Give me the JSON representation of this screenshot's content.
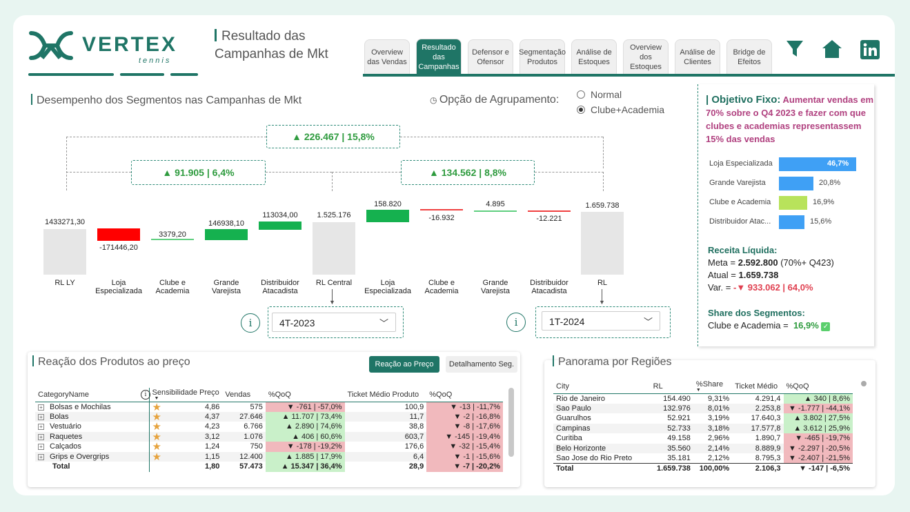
{
  "brand": {
    "name": "VERTEX",
    "sub": "tennis"
  },
  "page_title": "Resultado das Campanhas de Mkt",
  "tabs": [
    {
      "label": "Overview das Vendas",
      "active": false
    },
    {
      "label": "Resultado das Campanhas",
      "active": true
    },
    {
      "label": "Defensor e Ofensor",
      "active": false
    },
    {
      "label": "Segmentação Produtos",
      "active": false
    },
    {
      "label": "Análise de Estoques",
      "active": false
    },
    {
      "label": "Overview dos Estoques",
      "active": false
    },
    {
      "label": "Análise de Clientes",
      "active": false
    },
    {
      "label": "Bridge de Efeitos",
      "active": false
    }
  ],
  "waterfall": {
    "title": "Desempenho dos Segmentos nas Campanhas de Mkt",
    "grouping_label": "Opção de Agrupamento:",
    "options": [
      {
        "label": "Normal",
        "selected": false
      },
      {
        "label": "Clube+Academia",
        "selected": true
      }
    ],
    "total_delta": "▲ 226.467 | 15,8%",
    "left_delta": "▲ 91.905 | 6,4%",
    "right_delta": "▲ 134.562 | 8,8%",
    "bars": [
      {
        "label": "RL LY",
        "value": "1433271,30"
      },
      {
        "label": "Loja Especializada",
        "value": "-171446,20"
      },
      {
        "label": "Clube e Academia",
        "value": "3379,20"
      },
      {
        "label": "Grande Varejista",
        "value": "146938,10"
      },
      {
        "label": "Distribuidor Atacadista",
        "value": "113034,00"
      },
      {
        "label": "RL Central",
        "value": "1.525.176"
      },
      {
        "label": "Loja Especializada",
        "value": "158.820"
      },
      {
        "label": "Clube e Academia",
        "value": "-16.932"
      },
      {
        "label": "Grande Varejista",
        "value": "4.895"
      },
      {
        "label": "Distribuidor Atacadista",
        "value": "-12.221"
      },
      {
        "label": "RL",
        "value": "1.659.738"
      }
    ],
    "period_left": "4T-2023",
    "period_right": "1T-2024"
  },
  "objetivo": {
    "title": "Objetivo Fixo:",
    "text": "Aumentar vendas em 70% sobre o Q4 2023 e fazer com que clubes e academias representassem 15% das vendas",
    "bars": [
      {
        "label": "Loja Especializada",
        "value": 46.7,
        "text": "46,7%",
        "color": "#3fa0f5"
      },
      {
        "label": "Grande Varejista",
        "value": 20.8,
        "text": "20,8%",
        "color": "#3fa0f5"
      },
      {
        "label": "Clube e Academia",
        "value": 16.9,
        "text": "16,9%",
        "color": "#b8e35b"
      },
      {
        "label": "Distribuidor Atac...",
        "value": 15.6,
        "text": "15,6%",
        "color": "#3fa0f5"
      }
    ],
    "receita_title": "Receita Líquida:",
    "meta_label": "Meta =",
    "meta_value": "2.592.800",
    "meta_note": "(70%+ Q423)",
    "atual_label": "Atual =",
    "atual_value": "1.659.738",
    "var_label": "Var. =",
    "var_value": "-▼ 933.062 | 64,0%",
    "share_title": "Share dos Segmentos:",
    "share_label": "Clube e Academia =",
    "share_value": "16,9%"
  },
  "produtos": {
    "title": "Reação dos Produtos ao preço",
    "btn_active": "Reação ao Preço",
    "btn_inactive": "Detalhamento Seg.",
    "columns": [
      "CategoryName",
      "Sensibilidade Preço",
      "Vendas",
      "%QoQ",
      "Ticket Médio Produto",
      "%QoQ"
    ],
    "rows": [
      {
        "name": "Bolsas e Mochilas",
        "sens": "4,86",
        "vendas": "575",
        "qoq": "▼ -761 | -57,0%",
        "qoq_pos": false,
        "ticket": "100,9",
        "tqoq": "▼ -13 | -11,7%",
        "tqoq_pos": false
      },
      {
        "name": "Bolas",
        "sens": "4,37",
        "vendas": "27.646",
        "qoq": "▲ 11.707 | 73,4%",
        "qoq_pos": true,
        "ticket": "11,7",
        "tqoq": "▼ -2 | -16,8%",
        "tqoq_pos": false
      },
      {
        "name": "Vestuário",
        "sens": "4,23",
        "vendas": "6.766",
        "qoq": "▲ 2.890 | 74,6%",
        "qoq_pos": true,
        "ticket": "38,8",
        "tqoq": "▼ -8 | -17,6%",
        "tqoq_pos": false
      },
      {
        "name": "Raquetes",
        "sens": "3,12",
        "vendas": "1.076",
        "qoq": "▲ 406 | 60,6%",
        "qoq_pos": true,
        "ticket": "603,7",
        "tqoq": "▼ -145 | -19,4%",
        "tqoq_pos": false
      },
      {
        "name": "Calçados",
        "sens": "1,24",
        "vendas": "750",
        "qoq": "▼ -178 | -19,2%",
        "qoq_pos": false,
        "ticket": "176,6",
        "tqoq": "▼ -32 | -15,4%",
        "tqoq_pos": false
      },
      {
        "name": "Grips e Overgrips",
        "sens": "1,15",
        "vendas": "12.400",
        "qoq": "▲ 1.885 | 17,9%",
        "qoq_pos": true,
        "ticket": "6,4",
        "tqoq": "▼ -1 | -15,6%",
        "tqoq_pos": false
      }
    ],
    "total": {
      "name": "Total",
      "sens": "1,80",
      "vendas": "57.473",
      "qoq": "▲ 15.347 | 36,4%",
      "ticket": "28,9",
      "tqoq": "▼ -7 | -20,2%"
    }
  },
  "regioes": {
    "title": "Panorama por Regiões",
    "columns": [
      "City",
      "RL",
      "%Share",
      "Ticket Médio",
      "%QoQ"
    ],
    "rows": [
      {
        "city": "Rio de Janeiro",
        "rl": "154.490",
        "share": "9,31%",
        "ticket": "4.291,4",
        "qoq": "▲ 340 | 8,6%",
        "pos": true
      },
      {
        "city": "Sao Paulo",
        "rl": "132.976",
        "share": "8,01%",
        "ticket": "2.253,8",
        "qoq": "▼ -1.777 | -44,1%",
        "pos": false
      },
      {
        "city": "Guarulhos",
        "rl": "52.921",
        "share": "3,19%",
        "ticket": "17.640,3",
        "qoq": "▲ 3.802 | 27,5%",
        "pos": true
      },
      {
        "city": "Campinas",
        "rl": "52.733",
        "share": "3,18%",
        "ticket": "17.577,8",
        "qoq": "▲ 3.612 | 25,9%",
        "pos": true
      },
      {
        "city": "Curitiba",
        "rl": "49.158",
        "share": "2,96%",
        "ticket": "1.890,7",
        "qoq": "▼ -465 | -19,7%",
        "pos": false
      },
      {
        "city": "Belo Horizonte",
        "rl": "35.560",
        "share": "2,14%",
        "ticket": "8.889,9",
        "qoq": "▼ -2.297 | -20,5%",
        "pos": false
      },
      {
        "city": "Sao Jose do Rio Preto",
        "rl": "35.181",
        "share": "2,12%",
        "ticket": "8.795,3",
        "qoq": "▼ -2.407 | -21,5%",
        "pos": false
      }
    ],
    "total": {
      "city": "Total",
      "rl": "1.659.738",
      "share": "100,00%",
      "ticket": "2.106,3",
      "qoq": "▼ -147 | -6,5%"
    }
  }
}
